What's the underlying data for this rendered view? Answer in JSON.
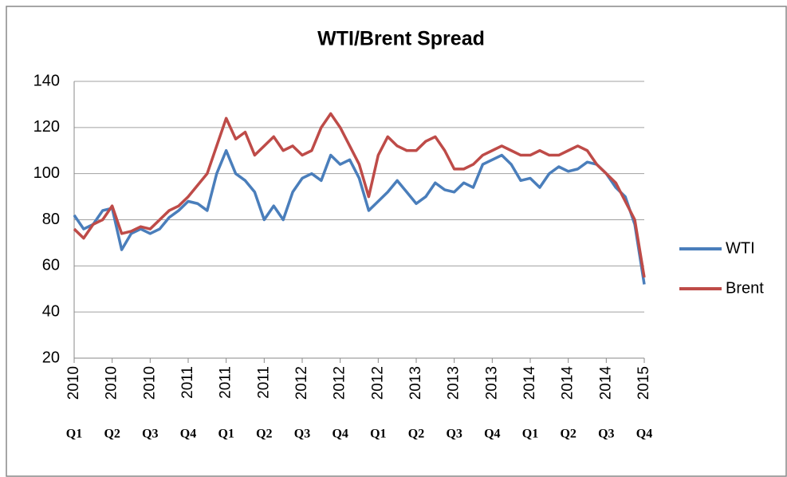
{
  "chart_data": {
    "type": "line",
    "title": "WTI/Brent Spread",
    "x": [
      0,
      0.25,
      0.5,
      0.75,
      1,
      1.25,
      1.5,
      1.75,
      2,
      2.25,
      2.5,
      2.75,
      3,
      3.25,
      3.5,
      3.75,
      4,
      4.25,
      4.5,
      4.75,
      5,
      5.25,
      5.5,
      5.75,
      6,
      6.25,
      6.5,
      6.75,
      7,
      7.25,
      7.5,
      7.75,
      8,
      8.25,
      8.5,
      8.75,
      9,
      9.25,
      9.5,
      9.75,
      10,
      10.25,
      10.5,
      10.75,
      11,
      11.25,
      11.5,
      11.75,
      12,
      12.25,
      12.5,
      12.75,
      13,
      13.25,
      13.5,
      13.75,
      14,
      14.25,
      14.5,
      14.75,
      15
    ],
    "series": [
      {
        "name": "WTI",
        "color": "#4a7ebb",
        "values": [
          82,
          76,
          78,
          84,
          85,
          67,
          74,
          76,
          74,
          76,
          81,
          84,
          88,
          87,
          84,
          100,
          110,
          100,
          97,
          92,
          80,
          86,
          80,
          92,
          98,
          100,
          97,
          108,
          104,
          106,
          98,
          84,
          88,
          92,
          97,
          92,
          87,
          90,
          96,
          93,
          92,
          96,
          94,
          104,
          106,
          108,
          104,
          97,
          98,
          94,
          100,
          103,
          101,
          102,
          105,
          104,
          100,
          94,
          90,
          78,
          52
        ]
      },
      {
        "name": "Brent",
        "color": "#be4b48",
        "values": [
          76,
          72,
          78,
          80,
          86,
          74,
          75,
          77,
          76,
          80,
          84,
          86,
          90,
          95,
          100,
          112,
          124,
          115,
          118,
          108,
          112,
          116,
          110,
          112,
          108,
          110,
          120,
          126,
          120,
          112,
          104,
          90,
          108,
          116,
          112,
          110,
          110,
          114,
          116,
          110,
          102,
          102,
          104,
          108,
          110,
          112,
          110,
          108,
          108,
          110,
          108,
          108,
          110,
          112,
          110,
          104,
          100,
          96,
          88,
          80,
          55
        ]
      }
    ],
    "xlim": [
      0,
      15
    ],
    "xticks": [
      {
        "value": 0,
        "label": "2010"
      },
      {
        "value": 1,
        "label": "2010"
      },
      {
        "value": 2,
        "label": "2010"
      },
      {
        "value": 3,
        "label": "2011"
      },
      {
        "value": 4,
        "label": "2011"
      },
      {
        "value": 5,
        "label": "2011"
      },
      {
        "value": 6,
        "label": "2012"
      },
      {
        "value": 7,
        "label": "2012"
      },
      {
        "value": 8,
        "label": "2012"
      },
      {
        "value": 9,
        "label": "2013"
      },
      {
        "value": 10,
        "label": "2013"
      },
      {
        "value": 11,
        "label": "2013"
      },
      {
        "value": 12,
        "label": "2014"
      },
      {
        "value": 13,
        "label": "2014"
      },
      {
        "value": 14,
        "label": "2014"
      },
      {
        "value": 15,
        "label": "2015"
      }
    ],
    "quarters": [
      "Q1",
      "Q2",
      "Q3",
      "Q4",
      "Q1",
      "Q2",
      "Q3",
      "Q4",
      "Q1",
      "Q2",
      "Q3",
      "Q4",
      "Q1",
      "Q2",
      "Q3",
      "Q4"
    ],
    "ylim": [
      20,
      140
    ],
    "yticks": [
      20,
      40,
      60,
      80,
      100,
      120,
      140
    ],
    "grid": true
  }
}
